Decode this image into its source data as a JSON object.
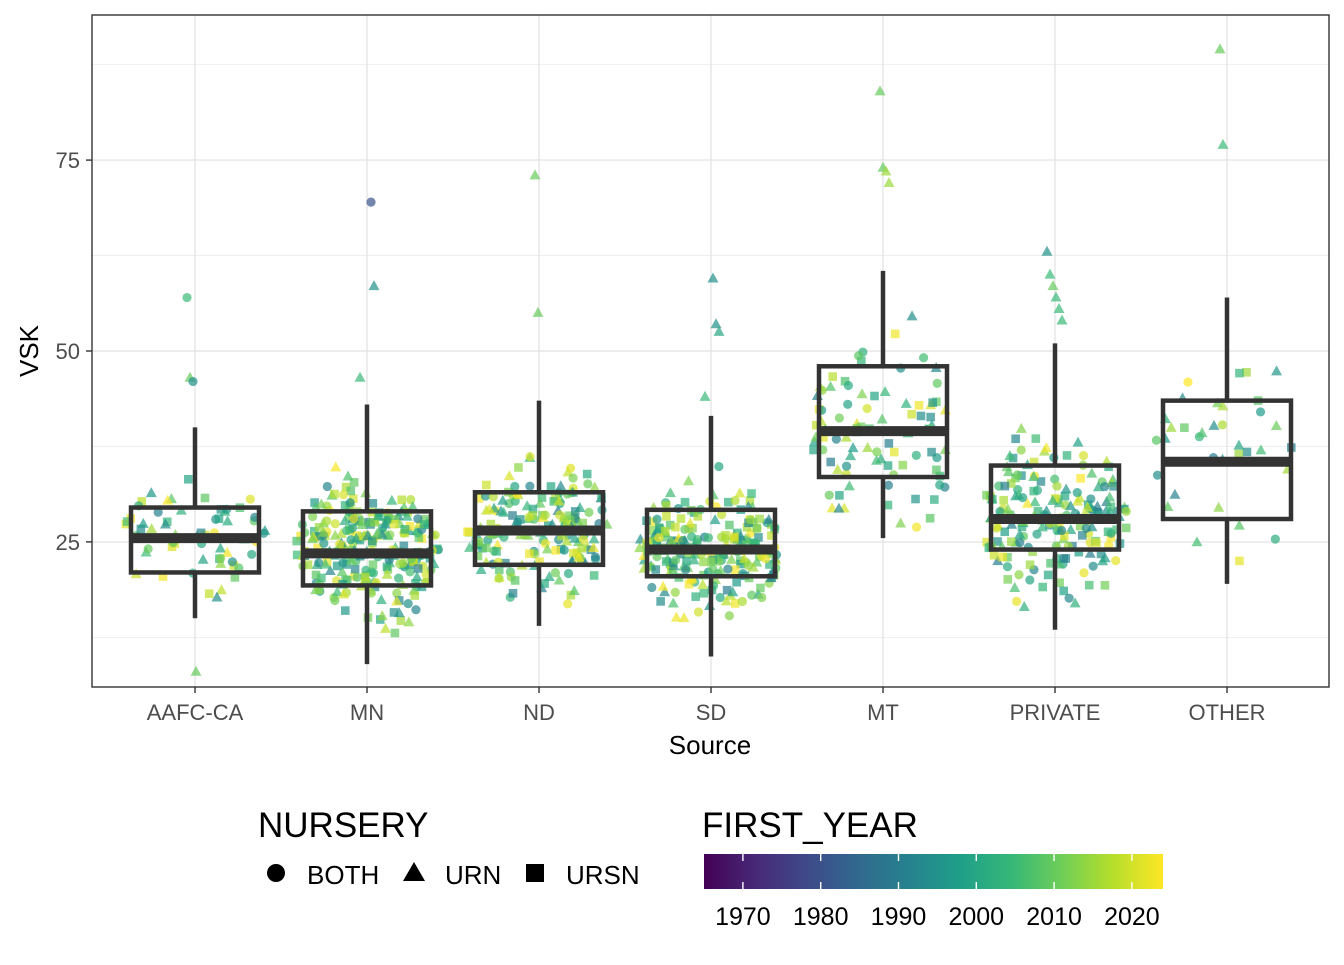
{
  "chart_data": {
    "type": "box+jitter",
    "xlabel": "Source",
    "ylabel": "VSK",
    "ylim": [
      6,
      94
    ],
    "yticks": [
      25,
      50,
      75
    ],
    "grid": true,
    "categories": [
      "AAFC-CA",
      "MN",
      "ND",
      "SD",
      "MT",
      "PRIVATE",
      "OTHER"
    ],
    "boxes": [
      {
        "category": "AAFC-CA",
        "whisker_low": 15,
        "q1": 21,
        "median": 25.5,
        "q3": 29.5,
        "whisker_high": 40
      },
      {
        "category": "MN",
        "whisker_low": 9,
        "q1": 19.3,
        "median": 23.5,
        "q3": 29,
        "whisker_high": 43
      },
      {
        "category": "ND",
        "whisker_low": 14,
        "q1": 22,
        "median": 26.5,
        "q3": 31.5,
        "whisker_high": 43.5
      },
      {
        "category": "SD",
        "whisker_low": 10,
        "q1": 20.5,
        "median": 24,
        "q3": 29.2,
        "whisker_high": 41.5
      },
      {
        "category": "MT",
        "whisker_low": 25.5,
        "q1": 33.5,
        "median": 39.5,
        "q3": 48,
        "whisker_high": 60.5
      },
      {
        "category": "PRIVATE",
        "whisker_low": 13.5,
        "q1": 24,
        "median": 28,
        "q3": 35,
        "whisker_high": 51
      },
      {
        "category": "OTHER",
        "whisker_low": 19.5,
        "q1": 28,
        "median": 35.5,
        "q3": 43.5,
        "whisker_high": 57
      }
    ],
    "outliers": [
      {
        "category": "AAFC-CA",
        "y": 57,
        "nursery": "BOTH",
        "year": 2005
      },
      {
        "category": "AAFC-CA",
        "y": 46.5,
        "nursery": "URN",
        "year": 2010
      },
      {
        "category": "AAFC-CA",
        "y": 46,
        "nursery": "BOTH",
        "year": 1995
      },
      {
        "category": "AAFC-CA",
        "y": 8,
        "nursery": "URN",
        "year": 2010
      },
      {
        "category": "MN",
        "y": 69.5,
        "nursery": "BOTH",
        "year": 1980
      },
      {
        "category": "MN",
        "y": 58.5,
        "nursery": "URN",
        "year": 1995
      },
      {
        "category": "MN",
        "y": 46.5,
        "nursery": "URN",
        "year": 2005
      },
      {
        "category": "ND",
        "y": 73,
        "nursery": "URN",
        "year": 2010
      },
      {
        "category": "ND",
        "y": 55,
        "nursery": "URN",
        "year": 2010
      },
      {
        "category": "SD",
        "y": 59.5,
        "nursery": "URN",
        "year": 1995
      },
      {
        "category": "SD",
        "y": 53.5,
        "nursery": "URN",
        "year": 1995
      },
      {
        "category": "SD",
        "y": 52.5,
        "nursery": "URN",
        "year": 2000
      },
      {
        "category": "SD",
        "y": 44,
        "nursery": "URN",
        "year": 2005
      },
      {
        "category": "MT",
        "y": 84,
        "nursery": "URN",
        "year": 2010
      },
      {
        "category": "MT",
        "y": 74,
        "nursery": "URN",
        "year": 2010
      },
      {
        "category": "MT",
        "y": 73.5,
        "nursery": "URN",
        "year": 2015
      },
      {
        "category": "MT",
        "y": 72,
        "nursery": "URN",
        "year": 2015
      },
      {
        "category": "PRIVATE",
        "y": 63,
        "nursery": "URN",
        "year": 1995
      },
      {
        "category": "PRIVATE",
        "y": 60,
        "nursery": "URN",
        "year": 2005
      },
      {
        "category": "PRIVATE",
        "y": 58.5,
        "nursery": "URN",
        "year": 2010
      },
      {
        "category": "PRIVATE",
        "y": 57,
        "nursery": "URN",
        "year": 2005
      },
      {
        "category": "PRIVATE",
        "y": 55.5,
        "nursery": "URN",
        "year": 2005
      },
      {
        "category": "PRIVATE",
        "y": 54,
        "nursery": "URN",
        "year": 2005
      },
      {
        "category": "OTHER",
        "y": 89.5,
        "nursery": "URN",
        "year": 2010
      },
      {
        "category": "OTHER",
        "y": 77,
        "nursery": "URN",
        "year": 2005
      }
    ],
    "legend_shape": {
      "title": "NURSERY",
      "placement": "bottom",
      "entries": [
        {
          "label": "BOTH",
          "shape": "circle"
        },
        {
          "label": "URN",
          "shape": "triangle"
        },
        {
          "label": "URSN",
          "shape": "square"
        }
      ]
    },
    "legend_color": {
      "title": "FIRST_YEAR",
      "placement": "bottom",
      "colormap": "viridis",
      "range": [
        1965,
        2024
      ],
      "ticks": [
        "1970",
        "1980",
        "1990",
        "2000",
        "2010",
        "2020"
      ],
      "stops": [
        "#440154",
        "#482878",
        "#3e4989",
        "#31688e",
        "#26828e",
        "#1f9e89",
        "#35b779",
        "#6ece58",
        "#b5de2b",
        "#fde725"
      ]
    },
    "point_opacity": 0.7,
    "box_color": "#333333"
  }
}
